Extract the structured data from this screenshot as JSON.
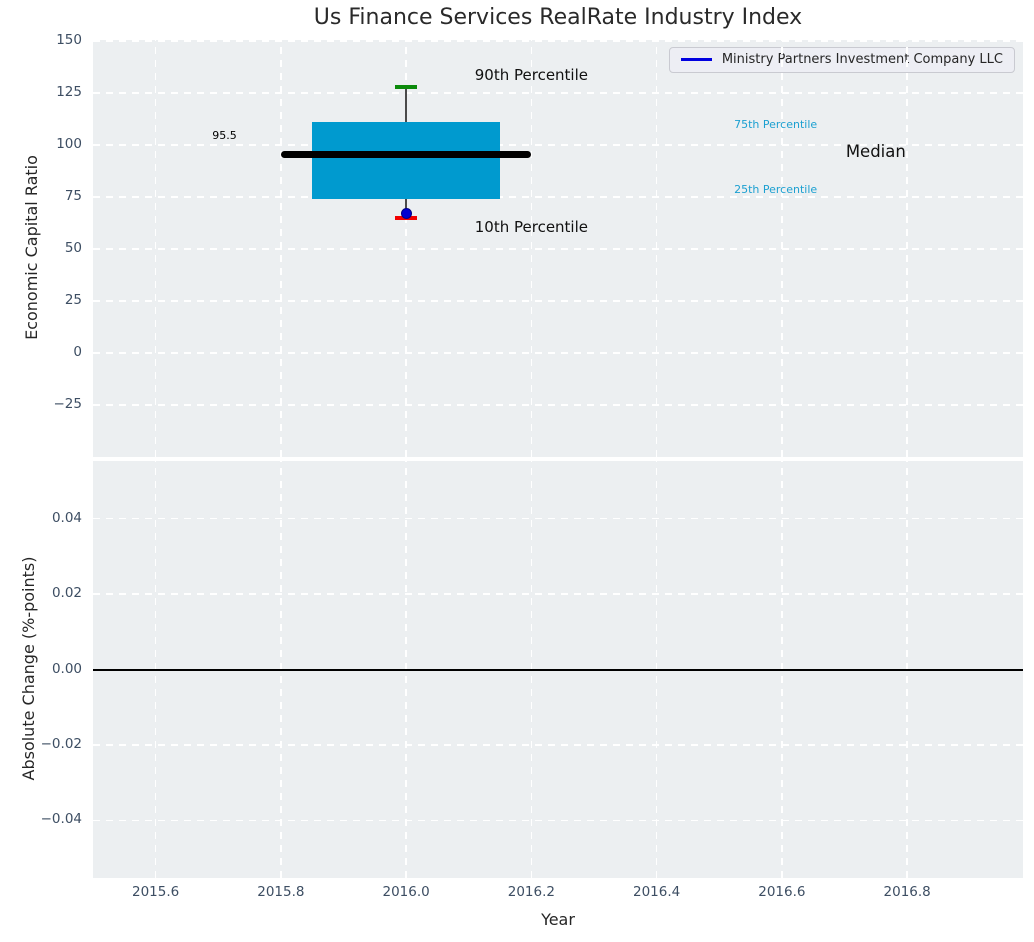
{
  "figure": {
    "title": "Us Finance Services RealRate Industry Index",
    "background": "#ffffff",
    "plot_background": "#eceff1",
    "grid_color": "#ffffff",
    "tick_color": "#3d4e63",
    "text_color": "#262626"
  },
  "legend": {
    "label": "Ministry Partners Investment Company LLC",
    "line_color": "#0000e0",
    "position": "upper right"
  },
  "chart_data": [
    {
      "type": "box",
      "title": "Us Finance Services RealRate Industry Index",
      "xlabel": "",
      "ylabel": "Economic Capital Ratio",
      "xlim": [
        2015.5,
        2016.985
      ],
      "ylim": [
        -50,
        150.5
      ],
      "grid": "white dashed, on",
      "xticks": {
        "values": [
          2015.6,
          2015.8,
          2016.0,
          2016.2,
          2016.4,
          2016.6,
          2016.8
        ],
        "labels": [
          "",
          "",
          "",
          "",
          "",
          "",
          ""
        ]
      },
      "yticks": {
        "values": [
          150,
          125,
          100,
          75,
          50,
          25,
          0,
          -25
        ],
        "labels": [
          "150",
          "125",
          "100",
          "75",
          "50",
          "25",
          "0",
          "−25"
        ]
      },
      "series": [
        {
          "name": "Ministry Partners Investment Company LLC",
          "x": 2016.0,
          "p10": 65,
          "p25": 74,
          "median": 95.5,
          "p75": 111,
          "p90": 128,
          "company_value": 67,
          "box_x_range": [
            2015.85,
            2016.15
          ],
          "median_x_range": [
            2015.8,
            2016.2
          ],
          "cap_half_width": 0.017
        }
      ],
      "colors": {
        "box_fill": "#009acf",
        "median_line": "#000000",
        "whisker": "#4a4a4a",
        "p90_cap": "#0b8a0b",
        "p10_cap": "#f20000",
        "company_dot": "#0000d2",
        "company_dot_edge": "#000085",
        "percentile_label": "#1ca0d1"
      },
      "annotations": [
        {
          "text": "95.5",
          "x": 2015.71,
          "y": 104,
          "size": 11,
          "color": "#000000"
        },
        {
          "text": "90th Percentile",
          "x": 2016.2,
          "y": 133,
          "size": 15,
          "color": "#111111"
        },
        {
          "text": "10th Percentile",
          "x": 2016.2,
          "y": 60,
          "size": 15,
          "color": "#111111"
        },
        {
          "text": "75th Percentile",
          "x": 2016.59,
          "y": 109,
          "size": 11,
          "color": "#1ca0d1"
        },
        {
          "text": "25th Percentile",
          "x": 2016.59,
          "y": 78,
          "size": 11,
          "color": "#1ca0d1"
        },
        {
          "text": "Median",
          "x": 2016.75,
          "y": 96,
          "size": 16.5,
          "color": "#111111"
        }
      ]
    },
    {
      "type": "line",
      "title": "",
      "xlabel": "Year",
      "ylabel": "Absolute Change (%-points)",
      "xlim": [
        2015.5,
        2016.985
      ],
      "ylim": [
        -0.0553,
        0.0553
      ],
      "grid": "white dashed, on",
      "xticks": {
        "values": [
          2015.6,
          2015.8,
          2016.0,
          2016.2,
          2016.4,
          2016.6,
          2016.8
        ],
        "labels": [
          "2015.6",
          "2015.8",
          "2016.0",
          "2016.2",
          "2016.4",
          "2016.6",
          "2016.8"
        ]
      },
      "yticks": {
        "values": [
          0.04,
          0.02,
          0.0,
          -0.02,
          -0.04
        ],
        "labels": [
          "0.04",
          "0.02",
          "0.00",
          "−0.02",
          "−0.04"
        ]
      },
      "zero_line": {
        "y": 0.0,
        "color": "#000000"
      },
      "series": []
    }
  ]
}
